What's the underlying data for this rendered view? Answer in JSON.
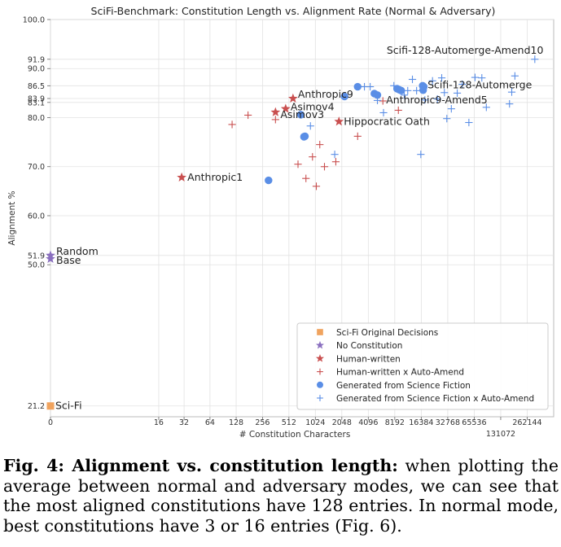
{
  "chart_data": {
    "type": "scatter",
    "title": "SciFi-Benchmark: Constitution Length vs. Alignment Rate (Normal & Adversary)",
    "xlabel": "# Constitution Characters",
    "ylabel": "Alignment %",
    "x_scale": "symlog-base2",
    "xlim": [
      0,
      524288
    ],
    "ylim": [
      19.0,
      100.0
    ],
    "x_ticks": [
      {
        "value": 0,
        "label": "0"
      },
      {
        "value": 16,
        "label": "16"
      },
      {
        "value": 32,
        "label": "32"
      },
      {
        "value": 64,
        "label": "64"
      },
      {
        "value": 128,
        "label": "128"
      },
      {
        "value": 256,
        "label": "256"
      },
      {
        "value": 512,
        "label": "512"
      },
      {
        "value": 1024,
        "label": "1024"
      },
      {
        "value": 2048,
        "label": "2048"
      },
      {
        "value": 4096,
        "label": "4096"
      },
      {
        "value": 8192,
        "label": "8192"
      },
      {
        "value": 16384,
        "label": "16384"
      },
      {
        "value": 32768,
        "label": "32768"
      },
      {
        "value": 65536,
        "label": "65536"
      },
      {
        "value": 131072,
        "label": "131072"
      },
      {
        "value": 262144,
        "label": "262144"
      }
    ],
    "y_ticks": [
      {
        "value": 21.2,
        "label": "21.2"
      },
      {
        "value": 50.0,
        "label": "50.0"
      },
      {
        "value": 51.9,
        "label": "51.9"
      },
      {
        "value": 60.0,
        "label": "60.0"
      },
      {
        "value": 70.0,
        "label": "70.0"
      },
      {
        "value": 80.0,
        "label": "80.0"
      },
      {
        "value": 83.1,
        "label": "83.1"
      },
      {
        "value": 83.9,
        "label": "83.9"
      },
      {
        "value": 86.5,
        "label": "86.5"
      },
      {
        "value": 90.0,
        "label": "90.0"
      },
      {
        "value": 91.9,
        "label": "91.9"
      },
      {
        "value": 100.0,
        "label": "100.0"
      }
    ],
    "grid": true,
    "legend_position": "lower-right",
    "colors": {
      "orange": "#f0a35e",
      "purple": "#8a6fbf",
      "red": "#c94f4f",
      "blue": "#5a8ee6"
    },
    "series": [
      {
        "name": "Sci-Fi Original Decisions",
        "marker": "square",
        "color": "#f0a35e",
        "points": [
          [
            0,
            21.2
          ]
        ]
      },
      {
        "name": "No Constitution",
        "marker": "star",
        "color": "#8a6fbf",
        "points": [
          [
            0,
            51.9
          ],
          [
            0,
            51.2
          ]
        ]
      },
      {
        "name": "Human-written",
        "marker": "star",
        "color": "#c94f4f",
        "points": [
          [
            30,
            67.8
          ],
          [
            360,
            81.1
          ],
          [
            470,
            81.8
          ],
          [
            570,
            83.9
          ],
          [
            1900,
            79.2
          ]
        ]
      },
      {
        "name": "Human-written x Auto-Amend",
        "marker": "plus",
        "color": "#c94f4f",
        "points": [
          [
            115,
            78.6
          ],
          [
            175,
            80.5
          ],
          [
            360,
            79.6
          ],
          [
            650,
            70.5
          ],
          [
            800,
            67.6
          ],
          [
            950,
            72.0
          ],
          [
            1050,
            66.0
          ],
          [
            1150,
            74.5
          ],
          [
            1300,
            70.0
          ],
          [
            1750,
            71.0
          ],
          [
            3100,
            76.2
          ],
          [
            6000,
            83.4
          ],
          [
            9000,
            81.5
          ]
        ]
      },
      {
        "name": "Generated from Science Fiction",
        "marker": "circle",
        "color": "#5a8ee6",
        "points": [
          [
            300,
            67.2
          ],
          [
            700,
            80.6
          ],
          [
            760,
            76.1
          ],
          [
            780,
            76.2
          ],
          [
            2200,
            84.3
          ],
          [
            3100,
            86.3
          ],
          [
            4800,
            84.9
          ],
          [
            5200,
            84.6
          ],
          [
            8700,
            85.9
          ],
          [
            9200,
            85.7
          ],
          [
            9700,
            85.5
          ],
          [
            17000,
            86.5
          ],
          [
            17200,
            85.6
          ],
          [
            17500,
            86.3
          ]
        ]
      },
      {
        "name": "Generated from Science Fiction x Auto-Amend",
        "marker": "plus",
        "color": "#5a8ee6",
        "points": [
          [
            900,
            78.3
          ],
          [
            1700,
            72.5
          ],
          [
            3700,
            86.3
          ],
          [
            4300,
            86.3
          ],
          [
            5200,
            83.5
          ],
          [
            6100,
            81.0
          ],
          [
            8000,
            86.5
          ],
          [
            10500,
            84.6
          ],
          [
            11500,
            85.5
          ],
          [
            13000,
            87.8
          ],
          [
            14500,
            85.5
          ],
          [
            16200,
            72.5
          ],
          [
            18000,
            83.6
          ],
          [
            22000,
            87.5
          ],
          [
            25000,
            83.8
          ],
          [
            28000,
            88.1
          ],
          [
            30000,
            85.1
          ],
          [
            32000,
            79.8
          ],
          [
            36000,
            81.8
          ],
          [
            42000,
            85.0
          ],
          [
            48000,
            86.8
          ],
          [
            57000,
            79.0
          ],
          [
            67000,
            88.2
          ],
          [
            80000,
            88.1
          ],
          [
            90000,
            82.1
          ],
          [
            165000,
            82.8
          ],
          [
            175000,
            85.2
          ],
          [
            190000,
            88.5
          ],
          [
            320000,
            91.9
          ]
        ]
      }
    ],
    "annotations": [
      {
        "text": "Sci-Fi",
        "x": 0,
        "y": 21.2
      },
      {
        "text": "Random",
        "x": 0,
        "y": 51.9
      },
      {
        "text": "Base",
        "x": 0,
        "y": 51.2
      },
      {
        "text": "Anthropic1",
        "x": 30,
        "y": 67.8
      },
      {
        "text": "Anthropic9",
        "x": 570,
        "y": 83.9
      },
      {
        "text": "Asimov4",
        "x": 470,
        "y": 81.8
      },
      {
        "text": "Asimov3",
        "x": 360,
        "y": 81.1
      },
      {
        "text": "Hippocratic Oath",
        "x": 1900,
        "y": 79.2
      },
      {
        "text": "Anthropic9-Amend5",
        "x": 6000,
        "y": 83.4
      },
      {
        "text": "Scifi-128-Automerge",
        "x": 17000,
        "y": 86.5
      },
      {
        "text": "Scifi-128-Automerge-Amend10",
        "x": 320000,
        "y": 91.9
      }
    ]
  },
  "caption": {
    "lead": "Fig. 4: Alignment vs. constitution length:",
    "body": " when plotting the average between normal and adversary modes, we can see that the most aligned constitutions have 128 entries. In normal mode, best constitutions have 3 or 16 entries (Fig. 6)."
  }
}
